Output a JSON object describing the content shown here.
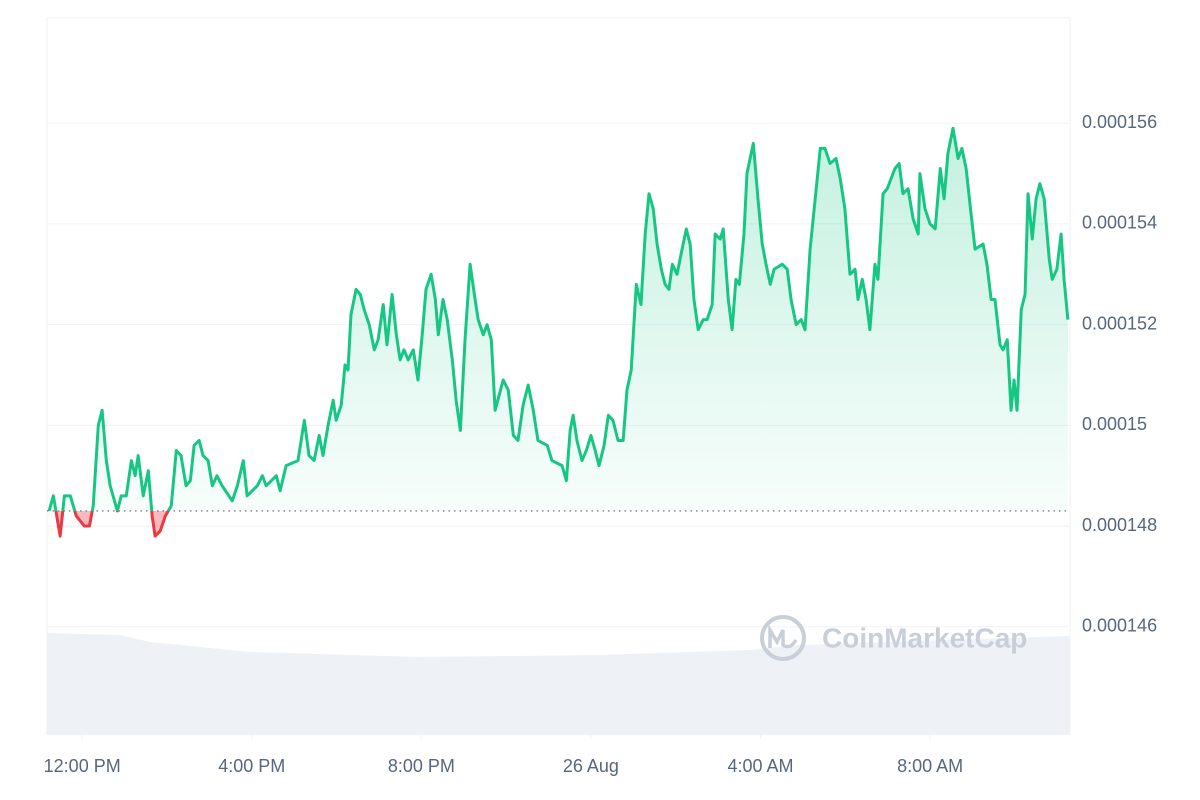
{
  "chart_data": {
    "type": "line",
    "watermark": "CoinMarketCap",
    "color_up": "#16c784",
    "color_down": "#ea3943",
    "grid": true,
    "baseline": 0.0001483,
    "xlim": [
      -0.83,
      23.3
    ],
    "xticks": [
      {
        "value": 0,
        "label": "12:00 PM"
      },
      {
        "value": 4,
        "label": "4:00 PM"
      },
      {
        "value": 8,
        "label": "8:00 PM"
      },
      {
        "value": 12,
        "label": "26 Aug"
      },
      {
        "value": 16,
        "label": "4:00 AM"
      },
      {
        "value": 20,
        "label": "8:00 AM"
      }
    ],
    "ylim": [
      0.00014385,
      0.00015809
    ],
    "yticks": [
      0.000146,
      0.000148,
      0.00015,
      0.000152,
      0.000154,
      0.000156
    ],
    "x": [
      -0.78,
      -0.68,
      -0.52,
      -0.42,
      -0.28,
      -0.14,
      0.05,
      0.17,
      0.26,
      0.38,
      0.47,
      0.57,
      0.66,
      0.83,
      0.92,
      1.04,
      1.16,
      1.25,
      1.32,
      1.44,
      1.56,
      1.65,
      1.72,
      1.84,
      1.96,
      2.1,
      2.22,
      2.33,
      2.45,
      2.55,
      2.64,
      2.76,
      2.85,
      2.97,
      3.07,
      3.18,
      3.3,
      3.54,
      3.66,
      3.8,
      3.89,
      4.13,
      4.25,
      4.34,
      4.58,
      4.67,
      4.81,
      5.09,
      5.24,
      5.35,
      5.47,
      5.59,
      5.68,
      5.8,
      5.92,
      5.99,
      6.11,
      6.2,
      6.27,
      6.34,
      6.46,
      6.56,
      6.65,
      6.77,
      6.89,
      6.98,
      7.1,
      7.19,
      7.31,
      7.41,
      7.5,
      7.59,
      7.69,
      7.81,
      7.92,
      8.02,
      8.11,
      8.23,
      8.33,
      8.4,
      8.51,
      8.61,
      8.73,
      8.82,
      8.92,
      9.03,
      9.15,
      9.25,
      9.34,
      9.46,
      9.55,
      9.65,
      9.74,
      9.93,
      10.05,
      10.17,
      10.28,
      10.4,
      10.52,
      10.64,
      10.75,
      10.97,
      11.08,
      11.32,
      11.42,
      11.51,
      11.58,
      11.67,
      11.79,
      11.89,
      12.0,
      12.1,
      12.19,
      12.31,
      12.41,
      12.52,
      12.64,
      12.76,
      12.85,
      12.95,
      13.07,
      13.18,
      13.28,
      13.37,
      13.47,
      13.56,
      13.66,
      13.75,
      13.84,
      13.92,
      14.03,
      14.15,
      14.25,
      14.34,
      14.43,
      14.53,
      14.65,
      14.74,
      14.86,
      14.93,
      15.05,
      15.12,
      15.24,
      15.33,
      15.42,
      15.5,
      15.61,
      15.68,
      15.83,
      15.94,
      16.04,
      16.13,
      16.23,
      16.32,
      16.51,
      16.63,
      16.72,
      16.84,
      16.96,
      17.05,
      17.17,
      17.29,
      17.41,
      17.52,
      17.64,
      17.78,
      17.88,
      17.99,
      18.11,
      18.23,
      18.3,
      18.4,
      18.49,
      18.58,
      18.7,
      18.77,
      18.89,
      18.99,
      19.08,
      19.17,
      19.27,
      19.36,
      19.48,
      19.6,
      19.72,
      19.76,
      19.88,
      20.0,
      20.12,
      20.24,
      20.33,
      20.42,
      20.54,
      20.66,
      20.75,
      20.85,
      20.94,
      21.06,
      21.25,
      21.34,
      21.44,
      21.53,
      21.65,
      21.72,
      21.82,
      21.91,
      21.98,
      22.05,
      22.15,
      22.24,
      22.31,
      22.41,
      22.5,
      22.59,
      22.69,
      22.81,
      22.88,
      22.99,
      23.09,
      23.16,
      23.25
    ],
    "values": [
      0.0001483,
      0.0001486,
      0.0001478,
      0.0001486,
      0.0001486,
      0.0001482,
      0.000148,
      0.000148,
      0.0001484,
      0.00015,
      0.0001503,
      0.0001493,
      0.0001488,
      0.0001483,
      0.0001486,
      0.0001486,
      0.0001493,
      0.000149,
      0.0001494,
      0.0001486,
      0.0001491,
      0.0001482,
      0.0001478,
      0.0001479,
      0.0001482,
      0.0001484,
      0.0001495,
      0.0001494,
      0.0001488,
      0.0001489,
      0.0001496,
      0.0001497,
      0.0001494,
      0.0001493,
      0.0001488,
      0.000149,
      0.0001488,
      0.0001485,
      0.0001488,
      0.0001493,
      0.0001486,
      0.0001488,
      0.000149,
      0.0001488,
      0.000149,
      0.0001487,
      0.0001492,
      0.0001493,
      0.0001501,
      0.0001494,
      0.0001493,
      0.0001498,
      0.0001494,
      0.00015,
      0.0001505,
      0.0001501,
      0.0001504,
      0.0001512,
      0.0001511,
      0.0001522,
      0.0001527,
      0.0001526,
      0.0001523,
      0.000152,
      0.0001515,
      0.0001517,
      0.0001524,
      0.0001516,
      0.0001526,
      0.0001518,
      0.0001513,
      0.0001515,
      0.0001513,
      0.0001515,
      0.0001509,
      0.0001518,
      0.0001527,
      0.000153,
      0.0001525,
      0.0001518,
      0.0001525,
      0.0001521,
      0.0001513,
      0.0001505,
      0.0001499,
      0.0001517,
      0.0001532,
      0.0001526,
      0.0001521,
      0.0001518,
      0.000152,
      0.0001517,
      0.0001503,
      0.0001509,
      0.0001507,
      0.0001498,
      0.0001497,
      0.0001504,
      0.0001508,
      0.0001503,
      0.0001497,
      0.0001496,
      0.0001493,
      0.0001492,
      0.0001489,
      0.0001499,
      0.0001502,
      0.0001497,
      0.0001493,
      0.0001495,
      0.0001498,
      0.0001495,
      0.0001492,
      0.0001496,
      0.0001502,
      0.0001501,
      0.0001497,
      0.0001497,
      0.0001507,
      0.0001511,
      0.0001528,
      0.0001524,
      0.0001538,
      0.0001546,
      0.0001543,
      0.0001536,
      0.0001531,
      0.0001528,
      0.0001527,
      0.0001532,
      0.000153,
      0.0001535,
      0.0001539,
      0.0001536,
      0.0001525,
      0.0001519,
      0.0001521,
      0.0001521,
      0.0001524,
      0.0001538,
      0.0001537,
      0.0001539,
      0.0001525,
      0.0001519,
      0.0001529,
      0.0001528,
      0.0001538,
      0.000155,
      0.0001556,
      0.0001545,
      0.0001536,
      0.0001532,
      0.0001528,
      0.0001531,
      0.0001532,
      0.0001531,
      0.0001525,
      0.000152,
      0.0001521,
      0.0001519,
      0.0001535,
      0.0001545,
      0.0001555,
      0.0001555,
      0.0001552,
      0.0001553,
      0.0001549,
      0.0001543,
      0.000153,
      0.0001531,
      0.0001525,
      0.0001529,
      0.0001525,
      0.0001519,
      0.0001532,
      0.0001529,
      0.0001546,
      0.0001547,
      0.0001549,
      0.0001551,
      0.0001552,
      0.0001546,
      0.0001547,
      0.0001541,
      0.0001538,
      0.000155,
      0.0001543,
      0.000154,
      0.0001539,
      0.0001551,
      0.0001545,
      0.0001554,
      0.0001559,
      0.0001553,
      0.0001555,
      0.0001551,
      0.0001544,
      0.0001535,
      0.0001536,
      0.0001532,
      0.0001525,
      0.0001525,
      0.0001516,
      0.0001515,
      0.0001517,
      0.0001503,
      0.0001509,
      0.0001503,
      0.0001523,
      0.0001526,
      0.0001546,
      0.0001537,
      0.0001545,
      0.0001548,
      0.0001545,
      0.0001533,
      0.0001529,
      0.0001531,
      0.0001538,
      0.0001529,
      0.0001521
    ]
  }
}
